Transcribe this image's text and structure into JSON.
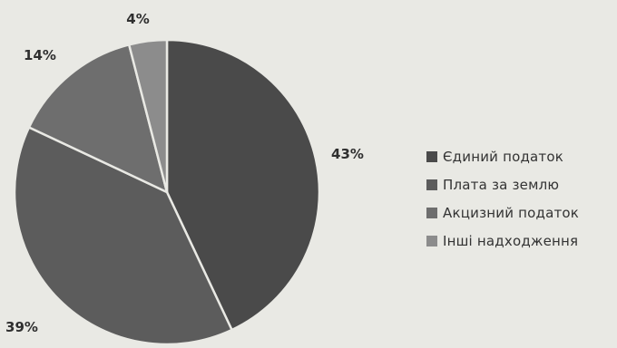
{
  "chart_data": {
    "type": "pie",
    "categories": [
      "Єдиний податок",
      "Плата за землю",
      "Акцизний податок",
      "Інші надходження"
    ],
    "values": [
      43,
      39,
      14,
      4
    ],
    "labels": [
      "43%",
      "39%",
      "14%",
      "4%"
    ],
    "colors": [
      "#4a4a4a",
      "#5c5c5c",
      "#6e6e6e",
      "#8c8c8c"
    ],
    "title": "",
    "legend_position": "right"
  }
}
